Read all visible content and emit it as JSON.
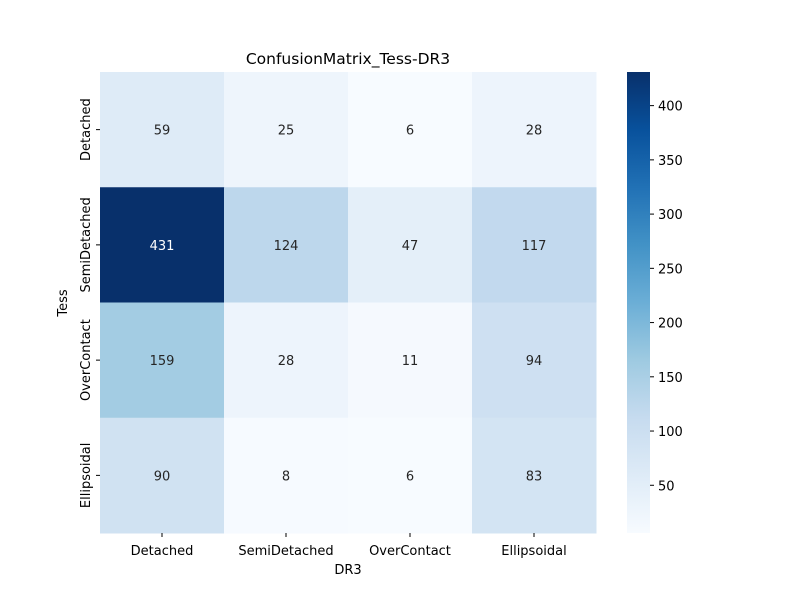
{
  "chart_data": {
    "type": "heatmap",
    "title": "ConfusionMatrix_Tess-DR3",
    "xlabel": "DR3",
    "ylabel": "Tess",
    "x_categories": [
      "Detached",
      "SemiDetached",
      "OverContact",
      "Ellipsoidal"
    ],
    "y_categories": [
      "Detached",
      "SemiDetached",
      "OverContact",
      "Ellipsoidal"
    ],
    "values": [
      [
        59,
        25,
        6,
        28
      ],
      [
        431,
        124,
        47,
        117
      ],
      [
        159,
        28,
        11,
        94
      ],
      [
        90,
        8,
        6,
        83
      ]
    ],
    "colormap": "Blues",
    "colormap_stops": [
      "#f7fbff",
      "#deebf7",
      "#c6dbef",
      "#9ecae1",
      "#6baed6",
      "#4292c6",
      "#2171b5",
      "#08519c",
      "#08306b"
    ],
    "vmin": 6,
    "vmax": 431,
    "colorbar_ticks": [
      50,
      100,
      150,
      200,
      250,
      300,
      350,
      400
    ],
    "annotation_dark_color": "#262626",
    "annotation_light_color": "#ffffff"
  }
}
